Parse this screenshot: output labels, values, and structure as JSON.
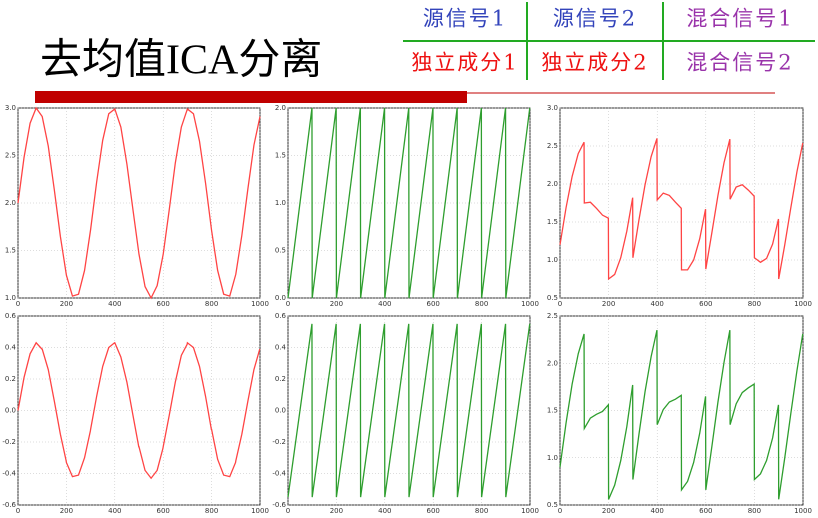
{
  "title": "去均值ICA分离",
  "legend_table": {
    "rows": [
      [
        "源信号1",
        "源信号2",
        "混合信号1"
      ],
      [
        "独立成分1",
        "独立成分2",
        "混合信号2"
      ]
    ]
  },
  "chart_data": [
    {
      "type": "line",
      "color": "#ff4444",
      "grid": true,
      "x": [
        0,
        25,
        50,
        75,
        100,
        125,
        150,
        175,
        200,
        225,
        250,
        275,
        300,
        325,
        350,
        375,
        400,
        425,
        450,
        475,
        500,
        525,
        550,
        575,
        600,
        625,
        650,
        675,
        700,
        725,
        750,
        775,
        800,
        825,
        850,
        875,
        900,
        925,
        950,
        975,
        1000
      ],
      "values": [
        2.0,
        2.48,
        2.84,
        3.0,
        2.91,
        2.6,
        2.14,
        1.65,
        1.24,
        1.02,
        1.04,
        1.29,
        1.72,
        2.22,
        2.66,
        2.94,
        2.99,
        2.8,
        2.41,
        1.93,
        1.46,
        1.12,
        1.0,
        1.13,
        1.46,
        1.93,
        2.42,
        2.8,
        2.99,
        2.94,
        2.65,
        2.21,
        1.71,
        1.29,
        1.04,
        1.02,
        1.25,
        1.66,
        2.15,
        2.61,
        2.91
      ],
      "xlim": [
        0,
        1000
      ],
      "xticks": [
        0,
        200,
        400,
        600,
        800,
        1000
      ],
      "ylim": [
        1,
        3
      ],
      "yticks": [
        {
          "value": 1,
          "label": "1.0"
        },
        1.5,
        {
          "value": 2,
          "label": "2.0"
        },
        2.5,
        {
          "value": 3,
          "label": "3.0"
        }
      ]
    },
    {
      "type": "line",
      "color": "#2e9e2e",
      "grid": true,
      "x": [
        0,
        99,
        100,
        199,
        200,
        299,
        300,
        399,
        400,
        499,
        500,
        599,
        600,
        699,
        700,
        799,
        800,
        899,
        900,
        999
      ],
      "values": [
        0,
        2,
        0,
        2,
        0,
        2,
        0,
        2,
        0,
        2,
        0,
        2,
        0,
        2,
        0,
        2,
        0,
        2,
        0,
        2
      ],
      "xlim": [
        0,
        1000
      ],
      "xticks": [
        0,
        200,
        400,
        600,
        800,
        1000
      ],
      "ylim": [
        0,
        2
      ],
      "yticks": [
        {
          "value": 0,
          "label": "0.0"
        },
        0.5,
        {
          "value": 1,
          "label": "1.0"
        },
        1.5,
        {
          "value": 2,
          "label": "2.0"
        }
      ]
    },
    {
      "type": "line",
      "color": "#ff4444",
      "grid": true,
      "x": [
        0,
        25,
        50,
        75,
        99,
        100,
        125,
        150,
        175,
        199,
        200,
        225,
        250,
        275,
        299,
        300,
        325,
        350,
        375,
        399,
        400,
        425,
        450,
        475,
        499,
        500,
        525,
        550,
        575,
        599,
        600,
        625,
        650,
        675,
        699,
        700,
        725,
        750,
        775,
        799,
        800,
        825,
        850,
        875,
        899,
        900,
        925,
        950,
        975,
        999
      ],
      "values": [
        1.2,
        1.69,
        2.1,
        2.4,
        2.55,
        1.75,
        1.76,
        1.68,
        1.59,
        1.55,
        0.75,
        0.81,
        1.03,
        1.38,
        1.82,
        1.03,
        1.53,
        1.99,
        2.36,
        2.6,
        1.79,
        1.88,
        1.85,
        1.76,
        1.68,
        0.87,
        0.87,
        1.0,
        1.28,
        1.67,
        0.88,
        1.36,
        1.85,
        2.28,
        2.59,
        1.8,
        1.96,
        1.99,
        1.92,
        1.84,
        1.03,
        0.97,
        1.02,
        1.21,
        1.54,
        0.75,
        1.2,
        1.69,
        2.16,
        2.54
      ],
      "xlim": [
        0,
        1000
      ],
      "xticks": [
        0,
        200,
        400,
        600,
        800,
        1000
      ],
      "ylim": [
        0.5,
        3
      ],
      "yticks": [
        0.5,
        {
          "value": 1,
          "label": "1.0"
        },
        1.5,
        {
          "value": 2,
          "label": "2.0"
        },
        2.5,
        {
          "value": 3,
          "label": "3.0"
        }
      ]
    },
    {
      "type": "line",
      "color": "#ff4444",
      "grid": true,
      "x": [
        0,
        25,
        50,
        75,
        99,
        100,
        125,
        150,
        175,
        199,
        200,
        225,
        250,
        275,
        299,
        300,
        325,
        350,
        375,
        399,
        400,
        425,
        450,
        475,
        499,
        500,
        525,
        550,
        575,
        599,
        600,
        625,
        650,
        675,
        699,
        700,
        725,
        750,
        775,
        799,
        800,
        825,
        850,
        875,
        899,
        900,
        925,
        950,
        975,
        999
      ],
      "values": [
        0,
        0.21,
        0.36,
        0.43,
        0.39,
        0.39,
        0.26,
        0.06,
        -0.15,
        -0.32,
        -0.33,
        -0.42,
        -0.41,
        -0.3,
        -0.13,
        -0.12,
        0.09,
        0.28,
        0.4,
        0.43,
        0.43,
        0.34,
        0.18,
        -0.03,
        -0.23,
        -0.23,
        -0.38,
        -0.43,
        -0.38,
        -0.24,
        -0.23,
        -0.03,
        0.18,
        0.35,
        0.42,
        0.43,
        0.4,
        0.28,
        0.09,
        -0.12,
        -0.12,
        -0.31,
        -0.41,
        -0.42,
        -0.33,
        -0.32,
        -0.15,
        0.06,
        0.26,
        0.39
      ],
      "xlim": [
        0,
        1000
      ],
      "xticks": [
        0,
        200,
        400,
        600,
        800,
        1000
      ],
      "ylim": [
        -0.6,
        0.6
      ],
      "yticks": [
        -0.6,
        -0.4,
        -0.2,
        {
          "value": 0,
          "label": "0.0"
        },
        0.2,
        0.4,
        0.6
      ]
    },
    {
      "type": "line",
      "color": "#2e9e2e",
      "grid": true,
      "x": [
        0,
        99,
        100,
        199,
        200,
        299,
        300,
        399,
        400,
        499,
        500,
        599,
        600,
        699,
        700,
        799,
        800,
        899,
        900,
        999
      ],
      "values": [
        -0.55,
        0.55,
        -0.55,
        0.55,
        -0.55,
        0.55,
        -0.55,
        0.55,
        -0.55,
        0.55,
        -0.55,
        0.55,
        -0.55,
        0.55,
        -0.55,
        0.55,
        -0.55,
        0.55,
        -0.55,
        0.55
      ],
      "xlim": [
        0,
        1000
      ],
      "xticks": [
        0,
        200,
        400,
        600,
        800,
        1000
      ],
      "ylim": [
        -0.6,
        0.6
      ],
      "yticks": [
        -0.6,
        -0.4,
        -0.2,
        {
          "value": 0,
          "label": "0.0"
        },
        0.2,
        0.4,
        0.6
      ]
    },
    {
      "type": "line",
      "color": "#2e9e2e",
      "grid": true,
      "x": [
        0,
        25,
        50,
        75,
        99,
        100,
        125,
        150,
        175,
        199,
        200,
        225,
        250,
        275,
        299,
        300,
        325,
        350,
        375,
        399,
        400,
        425,
        450,
        475,
        499,
        500,
        525,
        550,
        575,
        599,
        600,
        625,
        650,
        675,
        699,
        700,
        725,
        750,
        775,
        799,
        800,
        825,
        850,
        875,
        899,
        900,
        925,
        950,
        975,
        999
      ],
      "values": [
        0.9,
        1.37,
        1.78,
        2.1,
        2.31,
        1.31,
        1.42,
        1.46,
        1.49,
        1.56,
        0.56,
        0.71,
        0.97,
        1.33,
        1.77,
        0.77,
        1.25,
        1.7,
        2.07,
        2.35,
        1.35,
        1.51,
        1.59,
        1.62,
        1.66,
        0.66,
        0.75,
        0.95,
        1.26,
        1.65,
        0.66,
        1.12,
        1.59,
        2.01,
        2.35,
        1.35,
        1.57,
        1.69,
        1.74,
        1.78,
        0.77,
        0.83,
        0.97,
        1.21,
        1.56,
        0.56,
        1.0,
        1.47,
        1.92,
        2.31
      ],
      "xlim": [
        0,
        1000
      ],
      "xticks": [
        0,
        200,
        400,
        600,
        800,
        1000
      ],
      "ylim": [
        0.5,
        2.5
      ],
      "yticks": [
        0.5,
        {
          "value": 1,
          "label": "1.0"
        },
        1.5,
        {
          "value": 2,
          "label": "2.0"
        },
        2.5
      ]
    }
  ]
}
